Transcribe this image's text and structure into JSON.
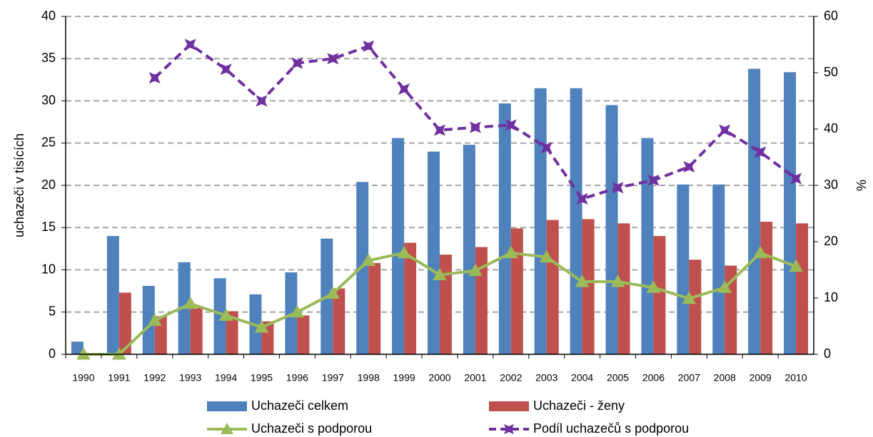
{
  "chart_data": {
    "type": "bar",
    "y_label": "uchazeči v tisících",
    "y2_label": "%",
    "categories": [
      "1990",
      "1991",
      "1992",
      "1993",
      "1994",
      "1995",
      "1996",
      "1997",
      "1998",
      "1999",
      "2000",
      "2001",
      "2002",
      "2003",
      "2004",
      "2005",
      "2006",
      "2007",
      "2008",
      "2009",
      "2010"
    ],
    "ylim": [
      0,
      40
    ],
    "yticks": [
      0,
      5,
      10,
      15,
      20,
      25,
      30,
      35,
      40
    ],
    "y2lim": [
      0,
      60
    ],
    "y2ticks": [
      0,
      10,
      20,
      30,
      40,
      50,
      60
    ],
    "grid": true,
    "legend": "bottom",
    "series": [
      {
        "name": "Uchazeči celkem",
        "type": "bar",
        "color": "#4f81bd",
        "values": [
          1.5,
          14.0,
          8.1,
          10.9,
          9.0,
          7.1,
          9.7,
          13.7,
          20.4,
          25.6,
          24.0,
          24.8,
          29.7,
          31.5,
          31.5,
          29.5,
          25.6,
          20.1,
          20.1,
          33.8,
          33.4
        ]
      },
      {
        "name": "Uchazeči - ženy",
        "type": "bar",
        "color": "#c0504d",
        "values": [
          null,
          7.3,
          4.5,
          5.5,
          5.1,
          3.9,
          4.6,
          7.8,
          10.8,
          13.2,
          11.8,
          12.7,
          14.9,
          15.9,
          16.0,
          15.5,
          14.0,
          11.2,
          10.5,
          15.7,
          15.5
        ]
      },
      {
        "name": "Uchazeči s podporou",
        "type": "line",
        "color": "#9bbb59",
        "values": [
          0,
          0,
          4.0,
          6.0,
          4.6,
          3.2,
          5.0,
          7.2,
          11.1,
          12.0,
          9.4,
          9.9,
          12.0,
          11.5,
          8.6,
          8.6,
          7.9,
          6.6,
          7.9,
          12.0,
          10.4
        ]
      },
      {
        "name": "Podíl uchazečů s podporou",
        "type": "line",
        "axis": "y2",
        "color": "#7030a0",
        "values": [
          null,
          null,
          49.1,
          55.0,
          50.6,
          45.0,
          51.7,
          52.5,
          54.7,
          47.1,
          39.8,
          40.3,
          40.7,
          36.7,
          27.6,
          29.6,
          30.9,
          33.3,
          39.8,
          35.9,
          31.2
        ]
      }
    ]
  }
}
